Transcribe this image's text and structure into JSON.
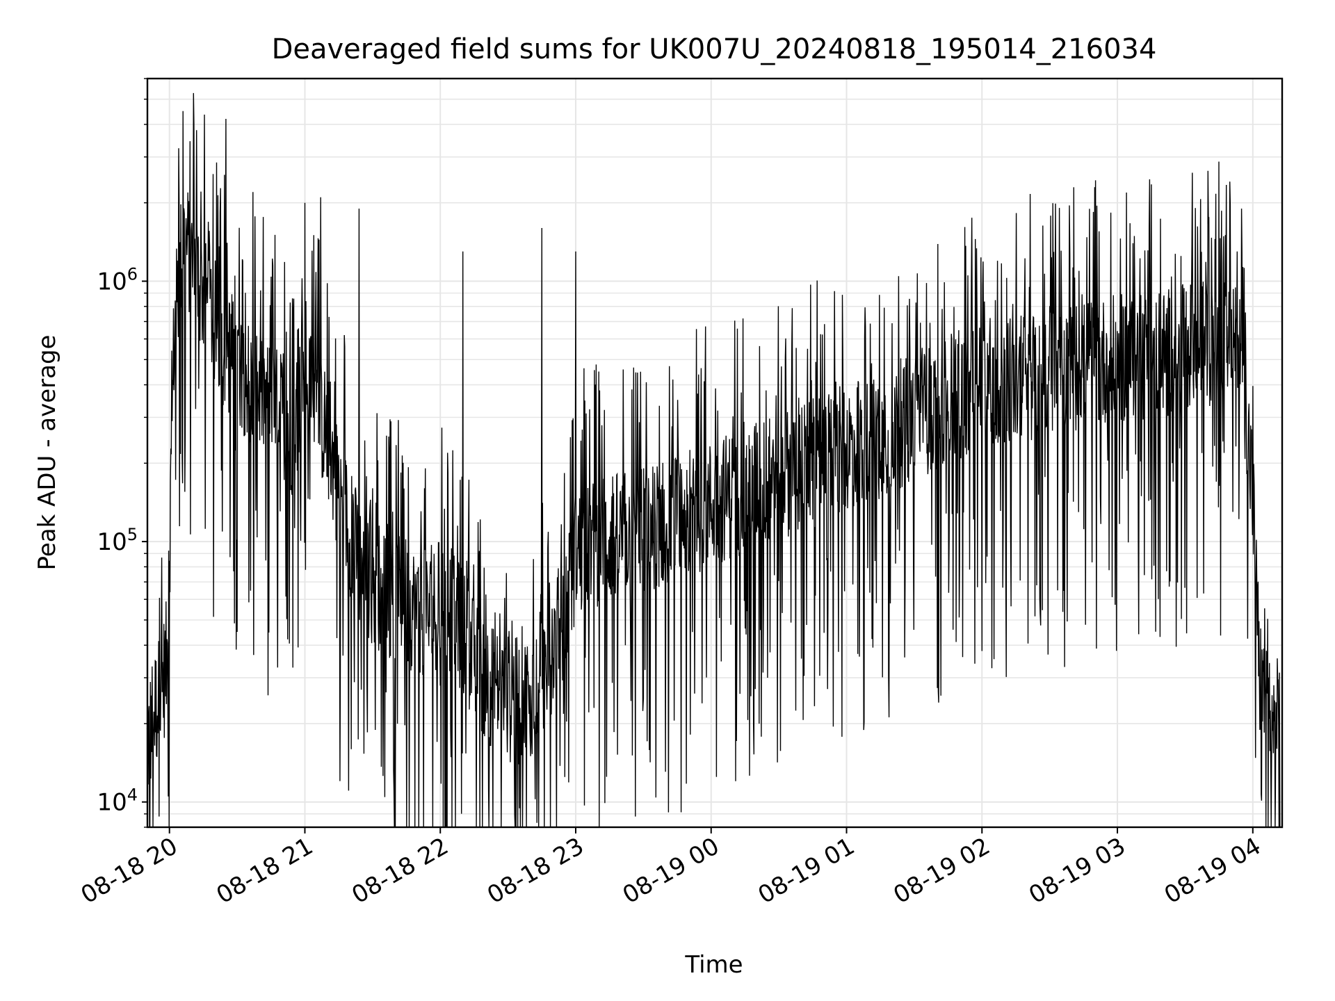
{
  "chart_data": {
    "type": "line",
    "title": "Deaveraged field sums for UK007U_20240818_195014_216034",
    "xlabel": "Time",
    "ylabel": "Peak ADU - average",
    "xlim": [
      "2024-08-18T19:50:14",
      "2024-08-19T04:13:00"
    ],
    "ylim": [
      8000,
      6000000
    ],
    "yscale": "log",
    "grid": true,
    "x_ticks": [
      {
        "time": "2024-08-18T20:00",
        "label": "08-18 20"
      },
      {
        "time": "2024-08-18T21:00",
        "label": "08-18 21"
      },
      {
        "time": "2024-08-18T22:00",
        "label": "08-18 22"
      },
      {
        "time": "2024-08-18T23:00",
        "label": "08-18 23"
      },
      {
        "time": "2024-08-19T00:00",
        "label": "08-19 00"
      },
      {
        "time": "2024-08-19T01:00",
        "label": "08-19 01"
      },
      {
        "time": "2024-08-19T02:00",
        "label": "08-19 02"
      },
      {
        "time": "2024-08-19T03:00",
        "label": "08-19 03"
      },
      {
        "time": "2024-08-19T04:00",
        "label": "08-19 04"
      }
    ],
    "y_ticks": [
      {
        "value": 10000,
        "base": "10",
        "exp": "4"
      },
      {
        "value": 100000,
        "base": "10",
        "exp": "5"
      },
      {
        "value": 1000000,
        "base": "10",
        "exp": "6"
      }
    ],
    "series": [
      {
        "color": "#000000",
        "points": [
          [
            "2024-08-18T19:50",
            16000
          ],
          [
            "2024-08-18T19:53",
            22000
          ],
          [
            "2024-08-18T19:56",
            26000
          ],
          [
            "2024-08-18T19:59",
            35000
          ],
          [
            "2024-08-18T20:02",
            600000
          ],
          [
            "2024-08-18T20:06",
            1500000
          ],
          [
            "2024-08-18T20:10",
            1200000
          ],
          [
            "2024-08-18T20:15",
            900000
          ],
          [
            "2024-08-18T20:20",
            700000
          ],
          [
            "2024-08-18T20:25",
            550000
          ],
          [
            "2024-08-18T20:30",
            500000
          ],
          [
            "2024-08-18T20:35",
            420000
          ],
          [
            "2024-08-18T20:40",
            380000
          ],
          [
            "2024-08-18T20:45",
            340000
          ],
          [
            "2024-08-18T20:50",
            300000
          ],
          [
            "2024-08-18T20:55",
            260000
          ],
          [
            "2024-08-18T21:00",
            500000
          ],
          [
            "2024-08-18T21:05",
            350000
          ],
          [
            "2024-08-18T21:10",
            250000
          ],
          [
            "2024-08-18T21:15",
            160000
          ],
          [
            "2024-08-18T21:20",
            110000
          ],
          [
            "2024-08-18T21:25",
            80000
          ],
          [
            "2024-08-18T21:30",
            70000
          ],
          [
            "2024-08-18T21:35",
            65000
          ],
          [
            "2024-08-18T21:40",
            60000
          ],
          [
            "2024-08-18T21:45",
            58000
          ],
          [
            "2024-08-18T21:50",
            55000
          ],
          [
            "2024-08-18T21:55",
            52000
          ],
          [
            "2024-08-18T22:00",
            60000
          ],
          [
            "2024-08-18T22:05",
            55000
          ],
          [
            "2024-08-18T22:10",
            45000
          ],
          [
            "2024-08-18T22:15",
            35000
          ],
          [
            "2024-08-18T22:20",
            30000
          ],
          [
            "2024-08-18T22:25",
            27000
          ],
          [
            "2024-08-18T22:30",
            25000
          ],
          [
            "2024-08-18T22:35",
            24000
          ],
          [
            "2024-08-18T22:40",
            26000
          ],
          [
            "2024-08-18T22:45",
            32000
          ],
          [
            "2024-08-18T22:50",
            40000
          ],
          [
            "2024-08-18T22:55",
            50000
          ],
          [
            "2024-08-18T23:00",
            90000
          ],
          [
            "2024-08-18T23:10",
            100000
          ],
          [
            "2024-08-18T23:20",
            105000
          ],
          [
            "2024-08-18T23:30",
            110000
          ],
          [
            "2024-08-18T23:40",
            120000
          ],
          [
            "2024-08-18T23:50",
            130000
          ],
          [
            "2024-08-19T00:00",
            140000
          ],
          [
            "2024-08-19T00:15",
            160000
          ],
          [
            "2024-08-19T00:30",
            180000
          ],
          [
            "2024-08-19T00:45",
            200000
          ],
          [
            "2024-08-19T01:00",
            230000
          ],
          [
            "2024-08-19T01:15",
            260000
          ],
          [
            "2024-08-19T01:30",
            300000
          ],
          [
            "2024-08-19T01:45",
            350000
          ],
          [
            "2024-08-19T02:00",
            400000
          ],
          [
            "2024-08-19T02:15",
            420000
          ],
          [
            "2024-08-19T02:30",
            450000
          ],
          [
            "2024-08-19T02:45",
            480000
          ],
          [
            "2024-08-19T03:00",
            500000
          ],
          [
            "2024-08-19T03:15",
            520000
          ],
          [
            "2024-08-19T03:30",
            550000
          ],
          [
            "2024-08-19T03:45",
            600000
          ],
          [
            "2024-08-19T03:55",
            550000
          ],
          [
            "2024-08-19T04:00",
            150000
          ],
          [
            "2024-08-19T04:03",
            30000
          ],
          [
            "2024-08-19T04:06",
            22000
          ],
          [
            "2024-08-19T04:09",
            21000
          ],
          [
            "2024-08-19T04:12",
            20000
          ]
        ],
        "spikes_max": [
          [
            "2024-08-18T20:06",
            4500000
          ],
          [
            "2024-08-18T20:12",
            3800000
          ],
          [
            "2024-08-18T20:25",
            4200000
          ],
          [
            "2024-08-18T20:37",
            2200000
          ],
          [
            "2024-08-18T21:00",
            2000000
          ],
          [
            "2024-08-18T21:07",
            2100000
          ],
          [
            "2024-08-18T21:24",
            1900000
          ],
          [
            "2024-08-18T22:10",
            1300000
          ],
          [
            "2024-08-18T22:45",
            1600000
          ],
          [
            "2024-08-18T23:00",
            1300000
          ],
          [
            "2024-08-19T03:50",
            2000000
          ],
          [
            "2024-08-19T03:55",
            1900000
          ]
        ],
        "spikes_min": [
          [
            "2024-08-18T20:30",
            45000
          ],
          [
            "2024-08-18T21:25",
            27000
          ],
          [
            "2024-08-18T22:00",
            28000
          ],
          [
            "2024-08-18T22:40",
            15000
          ],
          [
            "2024-08-18T23:30",
            25000
          ],
          [
            "2024-08-19T00:25",
            30000
          ],
          [
            "2024-08-19T01:05",
            37000
          ],
          [
            "2024-08-19T02:00",
            38000
          ],
          [
            "2024-08-19T04:10",
            10500
          ]
        ]
      }
    ]
  }
}
